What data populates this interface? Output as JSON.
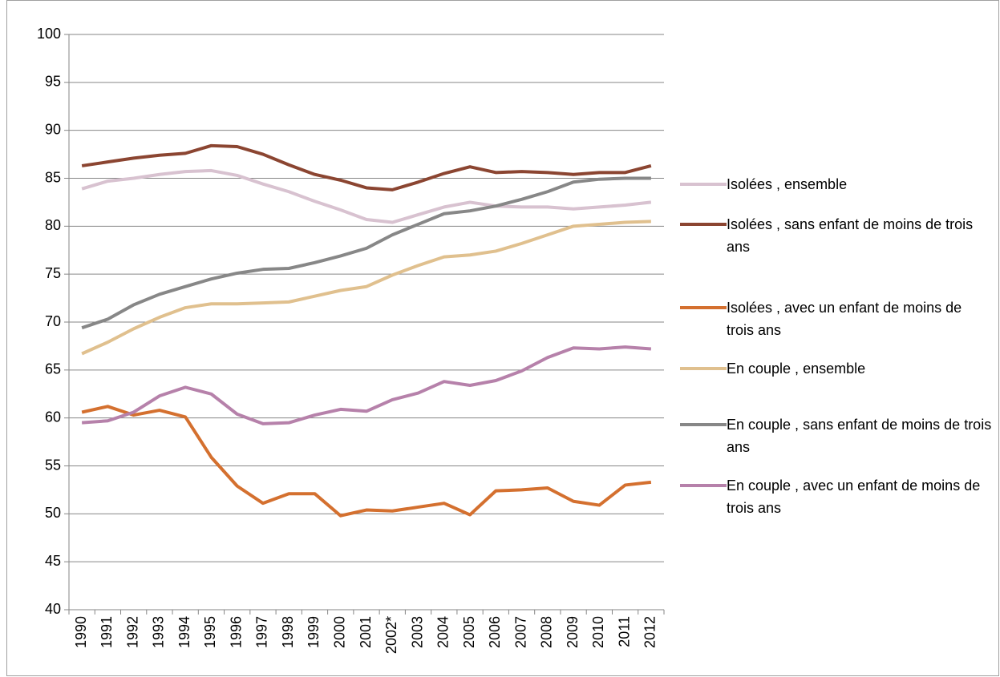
{
  "chart_data": {
    "type": "line",
    "categories": [
      "1990",
      "1991",
      "1992",
      "1993",
      "1994",
      "1995",
      "1996",
      "1997",
      "1998",
      "1999",
      "2000",
      "2001",
      "2002*",
      "2003",
      "2004",
      "2005",
      "2006",
      "2007",
      "2008",
      "2009",
      "2010",
      "2011",
      "2012"
    ],
    "ylim": [
      40,
      100
    ],
    "yticks": [
      40,
      45,
      50,
      55,
      60,
      65,
      70,
      75,
      80,
      85,
      90,
      95,
      100
    ],
    "grid": true,
    "series": [
      {
        "name": "Isolées , ensemble",
        "color": "#d8c2d0",
        "values": [
          83.9,
          84.7,
          85.0,
          85.4,
          85.7,
          85.8,
          85.3,
          84.4,
          83.6,
          82.6,
          81.7,
          80.7,
          80.4,
          81.2,
          82.0,
          82.5,
          82.1,
          82.0,
          82.0,
          81.8,
          82.0,
          82.2,
          82.5
        ]
      },
      {
        "name": "Isolées , sans enfant de moins de trois ans",
        "color": "#8b4531",
        "values": [
          86.3,
          86.7,
          87.1,
          87.4,
          87.6,
          88.4,
          88.3,
          87.5,
          86.4,
          85.4,
          84.8,
          84.0,
          83.8,
          84.6,
          85.5,
          86.2,
          85.6,
          85.7,
          85.6,
          85.4,
          85.6,
          85.6,
          86.3
        ]
      },
      {
        "name": "Isolées , avec un enfant de moins de trois ans",
        "color": "#d4702f",
        "values": [
          60.6,
          61.2,
          60.3,
          60.8,
          60.1,
          55.9,
          52.9,
          51.1,
          52.1,
          52.1,
          49.8,
          50.4,
          50.3,
          50.7,
          51.1,
          49.9,
          52.4,
          52.5,
          52.7,
          51.3,
          50.9,
          53.0,
          53.3
        ]
      },
      {
        "name": "En couple , ensemble",
        "color": "#e0c08e",
        "values": [
          66.7,
          67.9,
          69.3,
          70.5,
          71.5,
          71.9,
          71.9,
          72.0,
          72.1,
          72.7,
          73.3,
          73.7,
          74.9,
          75.9,
          76.8,
          77.0,
          77.4,
          78.2,
          79.1,
          80.0,
          80.2,
          80.4,
          80.5
        ]
      },
      {
        "name": "En couple , sans enfant de moins de trois ans",
        "color": "#878787",
        "values": [
          69.4,
          70.3,
          71.8,
          72.9,
          73.7,
          74.5,
          75.1,
          75.5,
          75.6,
          76.2,
          76.9,
          77.7,
          79.1,
          80.2,
          81.3,
          81.6,
          82.1,
          82.8,
          83.6,
          84.6,
          84.9,
          85.0,
          85.0
        ]
      },
      {
        "name": "En couple , avec un enfant de moins de trois ans",
        "color": "#b681aa",
        "values": [
          59.5,
          59.7,
          60.6,
          62.3,
          63.2,
          62.5,
          60.4,
          59.4,
          59.5,
          60.3,
          60.9,
          60.7,
          61.9,
          62.6,
          63.8,
          63.4,
          63.9,
          64.9,
          66.3,
          67.3,
          67.2,
          67.4,
          67.2
        ]
      }
    ]
  }
}
